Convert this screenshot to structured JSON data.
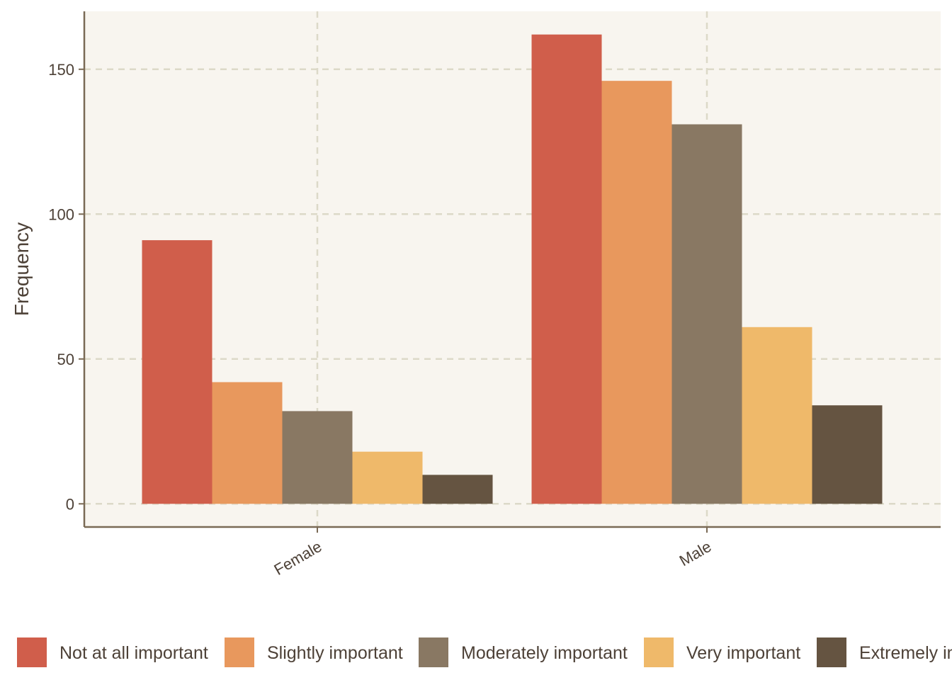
{
  "chart_data": {
    "type": "bar",
    "title": "",
    "xlabel": "",
    "ylabel": "Frequency",
    "categories": [
      "Female",
      "Male"
    ],
    "series": [
      {
        "name": "Not at all important",
        "color": "#D05E4B",
        "values": [
          91,
          162
        ]
      },
      {
        "name": "Slightly important",
        "color": "#E8985D",
        "values": [
          42,
          146
        ]
      },
      {
        "name": "Moderately important",
        "color": "#897863",
        "values": [
          32,
          131
        ]
      },
      {
        "name": "Very important",
        "color": "#EFB96A",
        "values": [
          18,
          61
        ]
      },
      {
        "name": "Extremely important",
        "color": "#655441",
        "values": [
          10,
          34
        ]
      }
    ],
    "ylim": [
      -8,
      170
    ],
    "yticks": [
      0,
      50,
      100,
      150
    ],
    "grid": true,
    "legend_position": "bottom",
    "colors": {
      "panel_background": "#F8F5EF",
      "grid": "#DCD9C8",
      "axis": "#7A6A55",
      "text": "#4D4137"
    }
  }
}
